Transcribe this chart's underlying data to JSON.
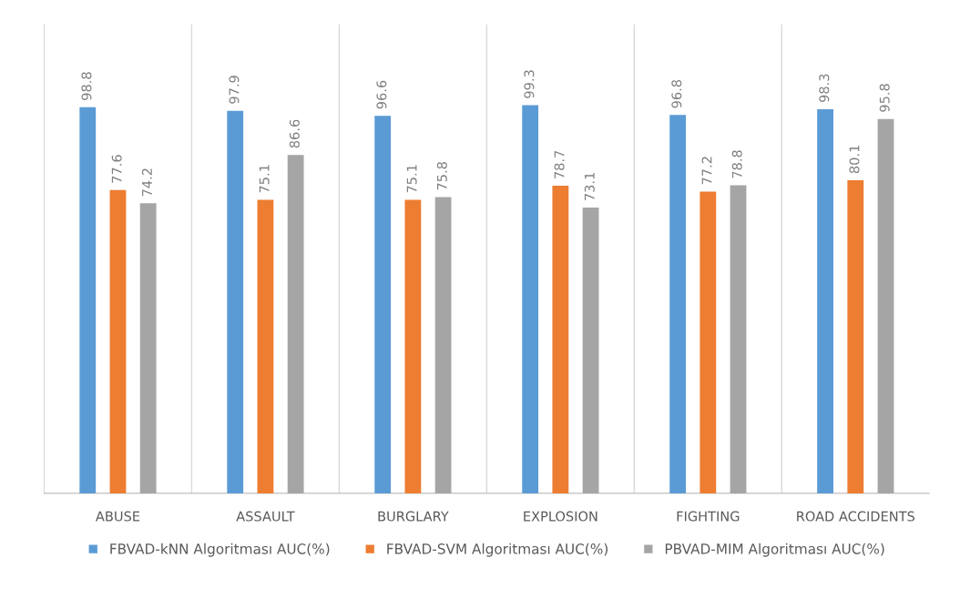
{
  "chart_data": {
    "type": "bar",
    "categories": [
      "ABUSE",
      "ASSAULT",
      "BURGLARY",
      "EXPLOSION",
      "FIGHTING",
      "ROAD ACCIDENTS"
    ],
    "series": [
      {
        "name": "FBVAD-kNN Algoritması AUC(%)",
        "color": "#5b9bd5",
        "values": [
          98.8,
          97.9,
          96.6,
          99.3,
          96.8,
          98.3
        ]
      },
      {
        "name": "FBVAD-SVM Algoritması AUC(%)",
        "color": "#ed7d31",
        "values": [
          77.6,
          75.1,
          75.1,
          78.7,
          77.2,
          80.1
        ]
      },
      {
        "name": "PBVAD-MIM Algoritması AUC(%)",
        "color": "#a5a5a5",
        "values": [
          74.2,
          86.6,
          75.8,
          73.1,
          78.8,
          95.8
        ]
      }
    ],
    "ylim": [
      0,
      120
    ],
    "tick_labels": "x",
    "grid": "x",
    "legend": "bottom",
    "data_labels": true
  }
}
